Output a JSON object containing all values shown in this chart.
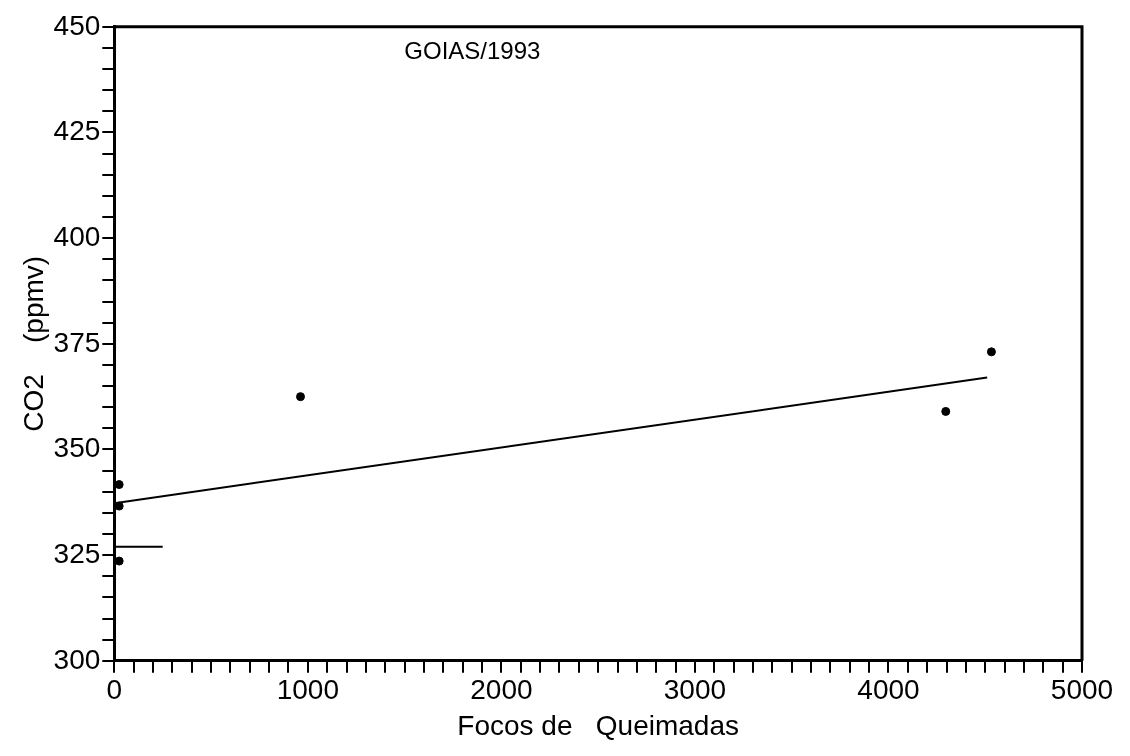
{
  "chart_data": {
    "type": "scatter",
    "xlabel": "Focos de   Queimadas",
    "ylabel": "CO2    (ppmv)",
    "annotations": [
      "GOIAS/1993"
    ],
    "xlim": [
      0,
      5000
    ],
    "ylim": [
      300,
      450
    ],
    "grid": false,
    "legend": false,
    "xticks": [
      0,
      {
        "value": 100,
        "label": null
      },
      {
        "value": 200,
        "label": null
      },
      {
        "value": 300,
        "label": null
      },
      {
        "value": 400,
        "label": null
      },
      {
        "value": 500,
        "label": null
      },
      {
        "value": 600,
        "label": null
      },
      {
        "value": 700,
        "label": null
      },
      {
        "value": 800,
        "label": null
      },
      {
        "value": 900,
        "label": null
      },
      1000,
      {
        "value": 1100,
        "label": null
      },
      {
        "value": 1200,
        "label": null
      },
      {
        "value": 1300,
        "label": null
      },
      {
        "value": 1400,
        "label": null
      },
      {
        "value": 1500,
        "label": null
      },
      {
        "value": 1600,
        "label": null
      },
      {
        "value": 1700,
        "label": null
      },
      {
        "value": 1800,
        "label": null
      },
      {
        "value": 1900,
        "label": null
      },
      2000,
      {
        "value": 2100,
        "label": null
      },
      {
        "value": 2200,
        "label": null
      },
      {
        "value": 2300,
        "label": null
      },
      {
        "value": 2400,
        "label": null
      },
      {
        "value": 2500,
        "label": null
      },
      {
        "value": 2600,
        "label": null
      },
      {
        "value": 2700,
        "label": null
      },
      {
        "value": 2800,
        "label": null
      },
      {
        "value": 2900,
        "label": null
      },
      3000,
      {
        "value": 3100,
        "label": null
      },
      {
        "value": 3200,
        "label": null
      },
      {
        "value": 3300,
        "label": null
      },
      {
        "value": 3400,
        "label": null
      },
      {
        "value": 3500,
        "label": null
      },
      {
        "value": 3600,
        "label": null
      },
      {
        "value": 3700,
        "label": null
      },
      {
        "value": 3800,
        "label": null
      },
      {
        "value": 3900,
        "label": null
      },
      4000,
      {
        "value": 4100,
        "label": null
      },
      {
        "value": 4200,
        "label": null
      },
      {
        "value": 4300,
        "label": null
      },
      {
        "value": 4400,
        "label": null
      },
      {
        "value": 4500,
        "label": null
      },
      {
        "value": 4600,
        "label": null
      },
      {
        "value": 4700,
        "label": null
      },
      {
        "value": 4800,
        "label": null
      },
      {
        "value": 4900,
        "label": null
      },
      5000
    ],
    "yticks": [
      300,
      {
        "value": 305,
        "label": null
      },
      {
        "value": 310,
        "label": null
      },
      {
        "value": 315,
        "label": null
      },
      {
        "value": 320,
        "label": null
      },
      325,
      {
        "value": 330,
        "label": null
      },
      {
        "value": 335,
        "label": null
      },
      {
        "value": 340,
        "label": null
      },
      {
        "value": 345,
        "label": null
      },
      350,
      {
        "value": 355,
        "label": null
      },
      {
        "value": 360,
        "label": null
      },
      {
        "value": 365,
        "label": null
      },
      {
        "value": 370,
        "label": null
      },
      375,
      {
        "value": 380,
        "label": null
      },
      {
        "value": 385,
        "label": null
      },
      {
        "value": 390,
        "label": null
      },
      {
        "value": 395,
        "label": null
      },
      400,
      {
        "value": 405,
        "label": null
      },
      {
        "value": 410,
        "label": null
      },
      {
        "value": 415,
        "label": null
      },
      {
        "value": 420,
        "label": null
      },
      425,
      {
        "value": 430,
        "label": null
      },
      {
        "value": 435,
        "label": null
      },
      {
        "value": 440,
        "label": null
      },
      {
        "value": 445,
        "label": null
      },
      450
    ],
    "series": [
      {
        "marker": "circle",
        "color": "#000000",
        "x": [
          25,
          25,
          25,
          962,
          4296,
          4532
        ],
        "values": [
          341.7,
          336.6,
          323.6,
          362.5,
          359,
          373.1
        ]
      },
      {
        "type": "line",
        "marker": "none",
        "color": "#000000",
        "x": [
          0,
          4510
        ],
        "values": [
          337.3,
          367
        ]
      },
      {
        "type": "line",
        "marker": "none",
        "color": "#000000",
        "x": [
          0,
          250
        ],
        "values": [
          327,
          327
        ]
      }
    ]
  }
}
